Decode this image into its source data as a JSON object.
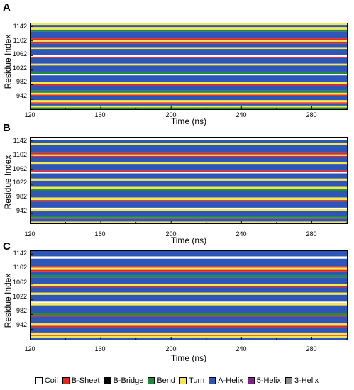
{
  "panels": [
    {
      "letter": "A"
    },
    {
      "letter": "B"
    },
    {
      "letter": "C"
    }
  ],
  "legend": [
    {
      "label": "Coil",
      "color": "#ffffff"
    },
    {
      "label": "B-Sheet",
      "color": "#e8261e"
    },
    {
      "label": "B-Bridge",
      "color": "#000000"
    },
    {
      "label": "Bend",
      "color": "#1e8c3a"
    },
    {
      "label": "Turn",
      "color": "#f5e94a"
    },
    {
      "label": "A-Helix",
      "color": "#2e56b8"
    },
    {
      "label": "5-Helix",
      "color": "#8a1e8c"
    },
    {
      "label": "3-Helix",
      "color": "#8c8c8c"
    }
  ],
  "chart_data": [
    {
      "type": "heatmap",
      "xlabel": "Time (ns)",
      "ylabel": "Residue Index",
      "xlim": [
        120,
        300
      ],
      "ylim": [
        915,
        1150
      ],
      "xticks": [
        120,
        160,
        200,
        240,
        280
      ],
      "yticks": [
        942,
        982,
        1022,
        1062,
        1102,
        1142
      ],
      "bands": [
        {
          "y0": 915,
          "y1": 920,
          "state": "Bend"
        },
        {
          "y0": 920,
          "y1": 925,
          "state": "Turn"
        },
        {
          "y0": 925,
          "y1": 931,
          "state": "A-Helix"
        },
        {
          "y0": 931,
          "y1": 934,
          "state": "B-Sheet"
        },
        {
          "y0": 934,
          "y1": 940,
          "state": "Turn"
        },
        {
          "y0": 940,
          "y1": 952,
          "state": "A-Helix"
        },
        {
          "y0": 952,
          "y1": 955,
          "state": "B-Sheet"
        },
        {
          "y0": 955,
          "y1": 960,
          "state": "Turn"
        },
        {
          "y0": 960,
          "y1": 966,
          "state": "Bend"
        },
        {
          "y0": 966,
          "y1": 980,
          "state": "A-Helix"
        },
        {
          "y0": 980,
          "y1": 983,
          "state": "B-Sheet"
        },
        {
          "y0": 983,
          "y1": 990,
          "state": "Turn"
        },
        {
          "y0": 990,
          "y1": 1008,
          "state": "A-Helix"
        },
        {
          "y0": 1008,
          "y1": 1012,
          "state": "Coil"
        },
        {
          "y0": 1012,
          "y1": 1018,
          "state": "Bend"
        },
        {
          "y0": 1018,
          "y1": 1035,
          "state": "A-Helix"
        },
        {
          "y0": 1035,
          "y1": 1040,
          "state": "Turn"
        },
        {
          "y0": 1040,
          "y1": 1055,
          "state": "A-Helix"
        },
        {
          "y0": 1055,
          "y1": 1059,
          "state": "B-Sheet"
        },
        {
          "y0": 1059,
          "y1": 1064,
          "state": "Coil"
        },
        {
          "y0": 1064,
          "y1": 1080,
          "state": "A-Helix"
        },
        {
          "y0": 1080,
          "y1": 1085,
          "state": "Turn"
        },
        {
          "y0": 1085,
          "y1": 1095,
          "state": "A-Helix"
        },
        {
          "y0": 1095,
          "y1": 1100,
          "state": "B-Sheet"
        },
        {
          "y0": 1100,
          "y1": 1105,
          "state": "Turn"
        },
        {
          "y0": 1105,
          "y1": 1109,
          "state": "B-Sheet"
        },
        {
          "y0": 1109,
          "y1": 1128,
          "state": "A-Helix"
        },
        {
          "y0": 1128,
          "y1": 1133,
          "state": "Bend"
        },
        {
          "y0": 1133,
          "y1": 1140,
          "state": "Turn"
        },
        {
          "y0": 1140,
          "y1": 1146,
          "state": "A-Helix"
        },
        {
          "y0": 1146,
          "y1": 1150,
          "state": "Turn"
        }
      ]
    },
    {
      "type": "heatmap",
      "xlabel": "Time (ns)",
      "ylabel": "Residue Index",
      "xlim": [
        120,
        300
      ],
      "ylim": [
        915,
        1150
      ],
      "xticks": [
        120,
        160,
        200,
        240,
        280
      ],
      "yticks": [
        942,
        982,
        1022,
        1062,
        1102,
        1142
      ],
      "bands": [
        {
          "y0": 915,
          "y1": 920,
          "state": "Turn"
        },
        {
          "y0": 920,
          "y1": 928,
          "state": "A-Helix"
        },
        {
          "y0": 928,
          "y1": 931,
          "state": "B-Sheet"
        },
        {
          "y0": 931,
          "y1": 936,
          "state": "Bend"
        },
        {
          "y0": 936,
          "y1": 950,
          "state": "A-Helix"
        },
        {
          "y0": 950,
          "y1": 954,
          "state": "Turn"
        },
        {
          "y0": 954,
          "y1": 958,
          "state": "Coil"
        },
        {
          "y0": 958,
          "y1": 975,
          "state": "A-Helix"
        },
        {
          "y0": 975,
          "y1": 979,
          "state": "B-Sheet"
        },
        {
          "y0": 979,
          "y1": 986,
          "state": "Turn"
        },
        {
          "y0": 986,
          "y1": 1004,
          "state": "A-Helix"
        },
        {
          "y0": 1004,
          "y1": 1010,
          "state": "Bend"
        },
        {
          "y0": 1010,
          "y1": 1015,
          "state": "Turn"
        },
        {
          "y0": 1015,
          "y1": 1032,
          "state": "A-Helix"
        },
        {
          "y0": 1032,
          "y1": 1038,
          "state": "Turn"
        },
        {
          "y0": 1038,
          "y1": 1052,
          "state": "A-Helix"
        },
        {
          "y0": 1052,
          "y1": 1056,
          "state": "Coil"
        },
        {
          "y0": 1056,
          "y1": 1060,
          "state": "B-Sheet"
        },
        {
          "y0": 1060,
          "y1": 1078,
          "state": "A-Helix"
        },
        {
          "y0": 1078,
          "y1": 1084,
          "state": "Turn"
        },
        {
          "y0": 1084,
          "y1": 1096,
          "state": "A-Helix"
        },
        {
          "y0": 1096,
          "y1": 1100,
          "state": "B-Sheet"
        },
        {
          "y0": 1100,
          "y1": 1104,
          "state": "Turn"
        },
        {
          "y0": 1104,
          "y1": 1108,
          "state": "B-Sheet"
        },
        {
          "y0": 1108,
          "y1": 1130,
          "state": "A-Helix"
        },
        {
          "y0": 1130,
          "y1": 1136,
          "state": "Turn"
        },
        {
          "y0": 1136,
          "y1": 1144,
          "state": "A-Helix"
        },
        {
          "y0": 1144,
          "y1": 1150,
          "state": "Coil"
        }
      ]
    },
    {
      "type": "heatmap",
      "xlabel": "Time (ns)",
      "ylabel": "Residue Index",
      "xlim": [
        120,
        300
      ],
      "ylim": [
        915,
        1150
      ],
      "xticks": [
        120,
        160,
        200,
        240,
        280
      ],
      "yticks": [
        942,
        982,
        1022,
        1062,
        1102,
        1142
      ],
      "bands": [
        {
          "y0": 915,
          "y1": 921,
          "state": "A-Helix"
        },
        {
          "y0": 921,
          "y1": 925,
          "state": "Turn"
        },
        {
          "y0": 925,
          "y1": 928,
          "state": "B-Sheet"
        },
        {
          "y0": 928,
          "y1": 934,
          "state": "Turn"
        },
        {
          "y0": 934,
          "y1": 948,
          "state": "A-Helix"
        },
        {
          "y0": 948,
          "y1": 952,
          "state": "B-Sheet"
        },
        {
          "y0": 952,
          "y1": 958,
          "state": "Turn"
        },
        {
          "y0": 958,
          "y1": 976,
          "state": "A-Helix"
        },
        {
          "y0": 976,
          "y1": 980,
          "state": "B-Sheet"
        },
        {
          "y0": 980,
          "y1": 986,
          "state": "Bend"
        },
        {
          "y0": 986,
          "y1": 1006,
          "state": "A-Helix"
        },
        {
          "y0": 1006,
          "y1": 1012,
          "state": "Turn"
        },
        {
          "y0": 1012,
          "y1": 1016,
          "state": "Coil"
        },
        {
          "y0": 1016,
          "y1": 1034,
          "state": "A-Helix"
        },
        {
          "y0": 1034,
          "y1": 1040,
          "state": "Turn"
        },
        {
          "y0": 1040,
          "y1": 1054,
          "state": "A-Helix"
        },
        {
          "y0": 1054,
          "y1": 1058,
          "state": "B-Sheet"
        },
        {
          "y0": 1058,
          "y1": 1063,
          "state": "Turn"
        },
        {
          "y0": 1063,
          "y1": 1080,
          "state": "A-Helix"
        },
        {
          "y0": 1080,
          "y1": 1086,
          "state": "Bend"
        },
        {
          "y0": 1086,
          "y1": 1096,
          "state": "A-Helix"
        },
        {
          "y0": 1096,
          "y1": 1100,
          "state": "B-Sheet"
        },
        {
          "y0": 1100,
          "y1": 1106,
          "state": "Turn"
        },
        {
          "y0": 1106,
          "y1": 1110,
          "state": "B-Sheet"
        },
        {
          "y0": 1110,
          "y1": 1130,
          "state": "A-Helix"
        },
        {
          "y0": 1130,
          "y1": 1136,
          "state": "Coil"
        },
        {
          "y0": 1136,
          "y1": 1150,
          "state": "A-Helix"
        }
      ]
    }
  ]
}
